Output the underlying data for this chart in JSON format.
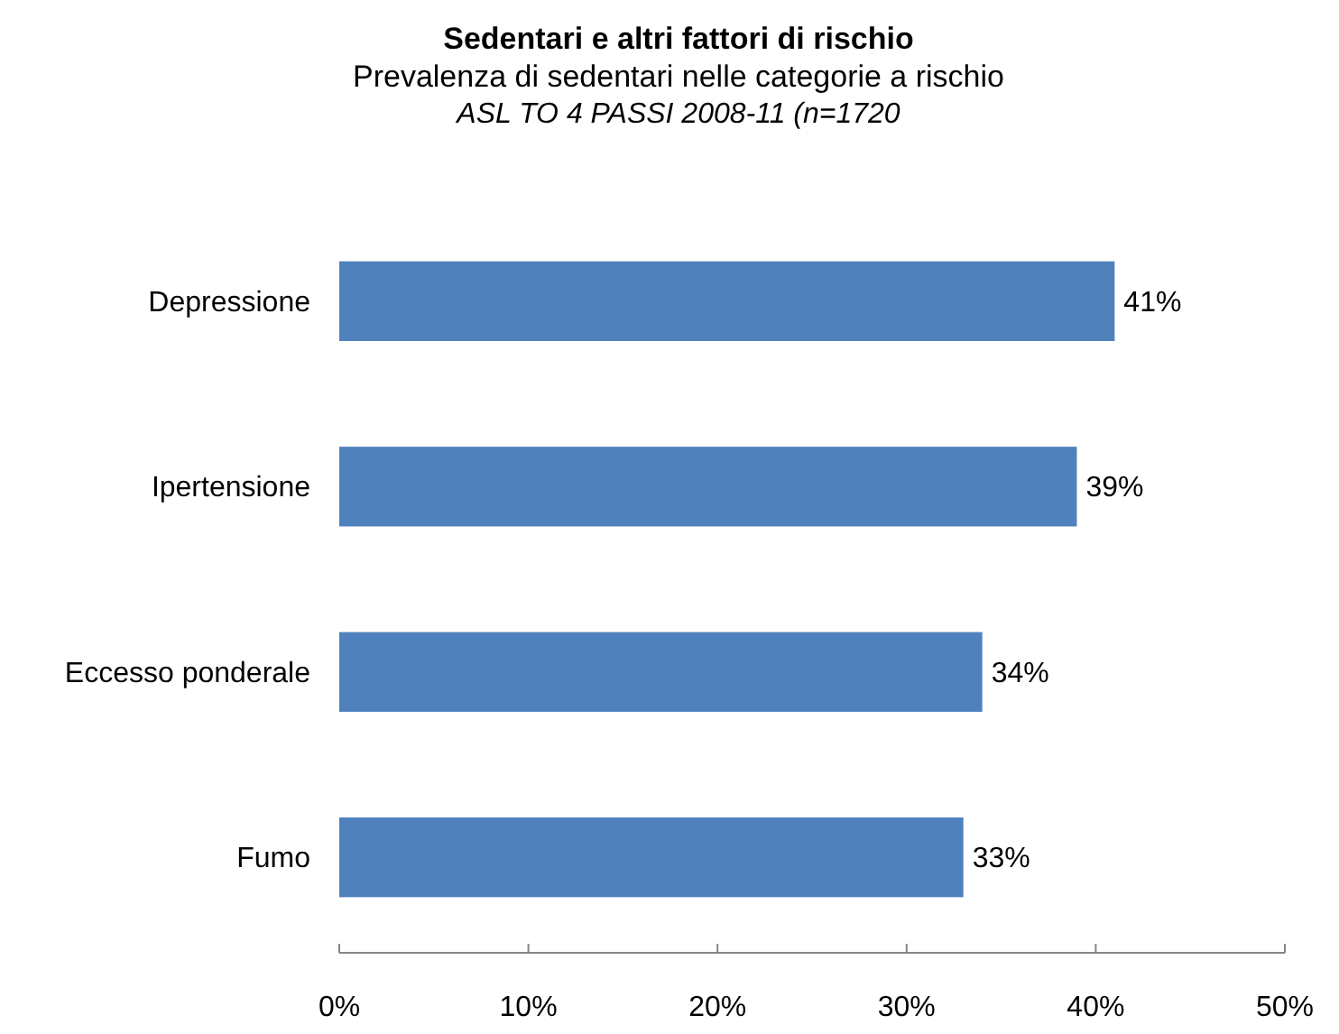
{
  "chart_data": {
    "type": "bar",
    "orientation": "horizontal",
    "title": "Sedentari e altri fattori di rischio",
    "subtitle": "Prevalenza di sedentari nelle categorie a rischio",
    "annotations": [
      "ASL TO 4 PASSI 2008-11 (n=1720"
    ],
    "categories": [
      "Depressione",
      "Ipertensione",
      "Eccesso ponderale",
      "Fumo"
    ],
    "values": [
      41,
      39,
      34,
      33
    ],
    "value_labels": [
      "41%",
      "39%",
      "34%",
      "33%"
    ],
    "color": "#4f81bd",
    "xlim": [
      0,
      50
    ],
    "xticks": [
      {
        "value": 0,
        "label": "0%"
      },
      {
        "value": 10,
        "label": "10%"
      },
      {
        "value": 20,
        "label": "20%"
      },
      {
        "value": 30,
        "label": "30%"
      },
      {
        "value": 40,
        "label": "40%"
      },
      {
        "value": 50,
        "label": "50%"
      }
    ]
  }
}
